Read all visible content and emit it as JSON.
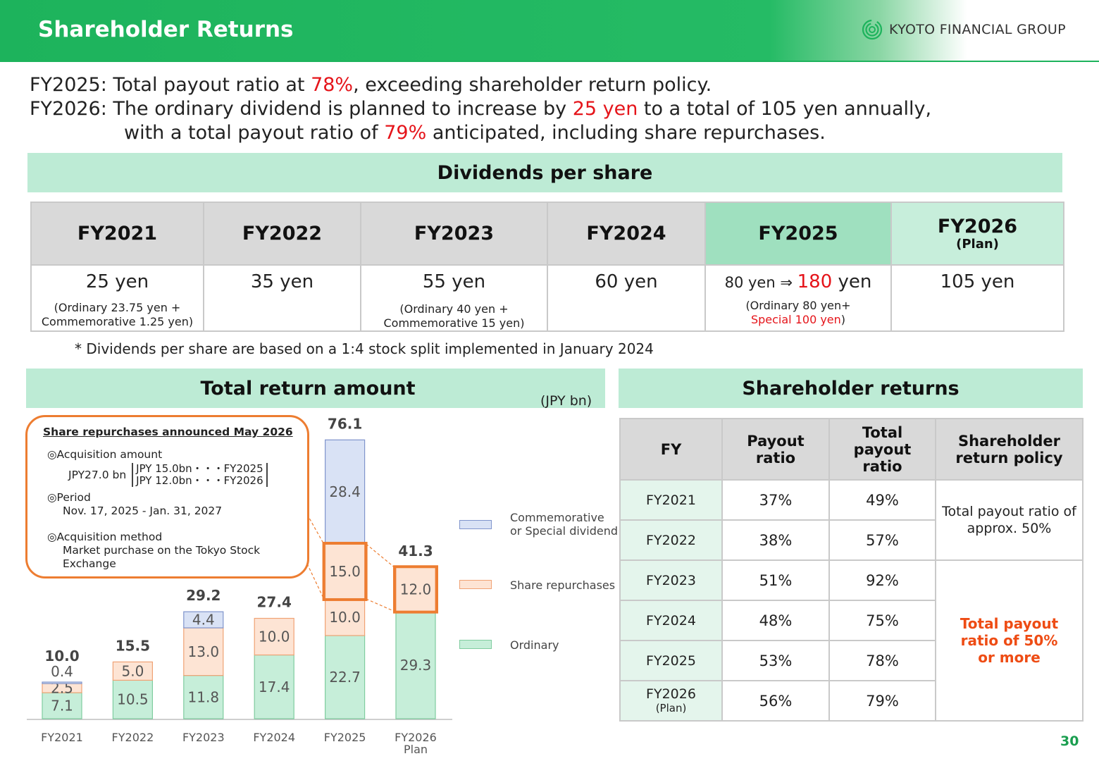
{
  "header": {
    "title": "Shareholder Returns",
    "logo_text": "KYOTO FINANCIAL GROUP"
  },
  "intro": {
    "line1": {
      "pre": "FY2025: Total payout ratio at ",
      "hl": "78%",
      "post": ", exceeding shareholder return policy."
    },
    "line2": {
      "pre": "FY2026: The ordinary dividend is planned to increase by ",
      "hl": "25 yen",
      "post": " to a total of 105 yen annually,"
    },
    "line3": {
      "pre": "with a total payout ratio of ",
      "hl": "79%",
      "post": " anticipated, including share repurchases."
    }
  },
  "dividends": {
    "title": "Dividends per share",
    "columns": [
      {
        "fy": "FY2021",
        "sub": "",
        "value": "25 yen",
        "note1": "(Ordinary 23.75 yen +",
        "note2": "Commemorative 1.25 yen)"
      },
      {
        "fy": "FY2022",
        "sub": "",
        "value": "35 yen",
        "note1": "",
        "note2": ""
      },
      {
        "fy": "FY2023",
        "sub": "",
        "value": "55 yen",
        "note1": "(Ordinary 40 yen +",
        "note2": "Commemorative 15 yen)"
      },
      {
        "fy": "FY2024",
        "sub": "",
        "value": "60 yen",
        "note1": "",
        "note2": ""
      },
      {
        "fy": "FY2025",
        "sub": "",
        "value_pre": "80 yen ⇒ ",
        "value_hl": "180",
        "value_post": " yen",
        "note1": "(Ordinary 80 yen+",
        "note2_hl": "Special 100 yen",
        "note2_post": ")"
      },
      {
        "fy": "FY2026",
        "sub": "(Plan)",
        "value": "105 yen",
        "note1": "",
        "note2": ""
      }
    ],
    "footnote": "* Dividends per share are based on a 1:4 stock split implemented in January 2024"
  },
  "total_return": {
    "title": "Total return amount",
    "unit": "(JPY bn)"
  },
  "callout": {
    "title": "Share repurchases  announced May 2026",
    "acq_label": "◎Acquisition amount",
    "acq_amount": "JPY27.0 bn",
    "acq_line1": "JPY 15.0bn・・・FY2025",
    "acq_line2": "JPY 12.0bn・・・FY2026",
    "period_label": "◎Period",
    "period_value": "Nov. 17, 2025 - Jan. 31, 2027",
    "method_label": "◎Acquisition method",
    "method_value1": "Market purchase on the Tokyo Stock",
    "method_value2": "Exchange"
  },
  "legend": {
    "special1": "Commemorative",
    "special2": "or Special dividend",
    "repurchase": "Share repurchases",
    "ordinary": "Ordinary"
  },
  "colors": {
    "header_green": "#1db35c",
    "band": "#bdebd5",
    "ordinary_fill": "#c6eed9",
    "ordinary_stroke": "#7fcc9f",
    "repurchase_fill": "#fde4d4",
    "repurchase_stroke": "#f0a274",
    "special_fill": "#d9e2f5",
    "special_stroke": "#7f94cc",
    "highlight": "#ed7d31",
    "red": "#e5141a"
  },
  "chart_data": {
    "type": "bar",
    "stacked": true,
    "categories": [
      "FY2021",
      "FY2022",
      "FY2023",
      "FY2024",
      "FY2025",
      "FY2026"
    ],
    "category_sublabels": [
      "",
      "",
      "",
      "",
      "",
      "Plan"
    ],
    "series": [
      {
        "name": "Ordinary",
        "values": [
          7.1,
          10.5,
          11.8,
          17.4,
          22.7,
          29.3
        ]
      },
      {
        "name": "Share repurchases",
        "values": [
          2.5,
          5.0,
          13.0,
          10.0,
          10.0,
          0
        ]
      },
      {
        "name": "Share repurchases",
        "values": [
          0,
          0,
          0,
          0,
          15.0,
          12.0
        ]
      },
      {
        "name": "Commemorative or Special dividend",
        "values": [
          0.4,
          0,
          4.4,
          0,
          28.4,
          0
        ]
      }
    ],
    "totals": [
      10.0,
      15.5,
      29.2,
      27.4,
      76.1,
      41.3
    ],
    "ylim": [
      0,
      80
    ],
    "unit": "(JPY bn)",
    "legend_position": "right"
  },
  "shareholder_returns": {
    "title": "Shareholder returns",
    "headers": [
      "FY",
      "Payout ratio",
      "Total payout ratio",
      "Shareholder return policy"
    ],
    "header_lines": {
      "payout": [
        "Payout",
        "ratio"
      ],
      "total": [
        "Total",
        "payout",
        "ratio"
      ],
      "policy": [
        "Shareholder",
        "return policy"
      ]
    },
    "rows": [
      {
        "fy": "FY2021",
        "sub": "",
        "payout": "37%",
        "total": "49%"
      },
      {
        "fy": "FY2022",
        "sub": "",
        "payout": "38%",
        "total": "57%"
      },
      {
        "fy": "FY2023",
        "sub": "",
        "payout": "51%",
        "total": "92%"
      },
      {
        "fy": "FY2024",
        "sub": "",
        "payout": "48%",
        "total": "75%"
      },
      {
        "fy": "FY2025",
        "sub": "",
        "payout": "53%",
        "total": "78%"
      },
      {
        "fy": "FY2026",
        "sub": "(Plan)",
        "payout": "56%",
        "total": "79%"
      }
    ],
    "policy1_lines": [
      "Total payout ratio of",
      "approx. 50%"
    ],
    "policy2_lines": [
      "Total payout",
      "ratio of 50%",
      "or more"
    ]
  },
  "page_number": "30"
}
